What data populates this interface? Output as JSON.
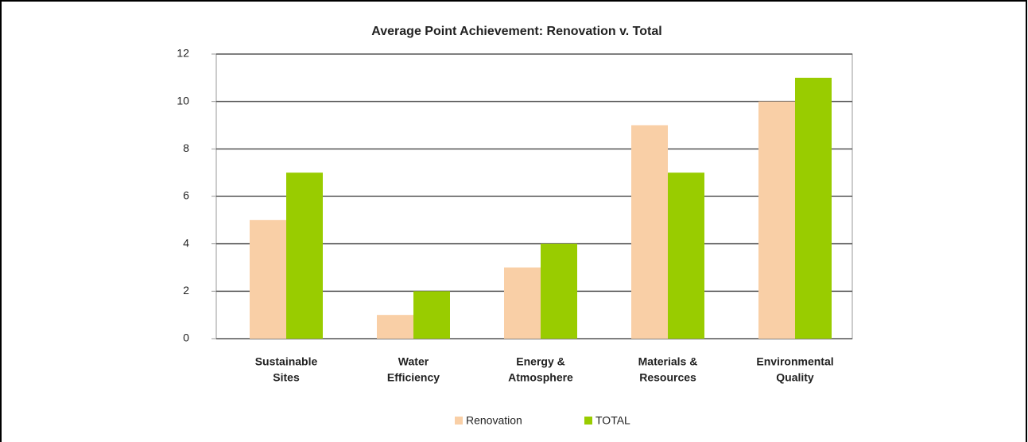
{
  "chart_data": {
    "type": "bar",
    "title": "Average Point Achievement: Renovation v. Total",
    "categories": [
      [
        "Sustainable",
        "Sites"
      ],
      [
        "Water",
        "Efficiency"
      ],
      [
        "Energy &",
        "Atmosphere"
      ],
      [
        "Materials &",
        "Resources"
      ],
      [
        "Environmental",
        "Quality"
      ]
    ],
    "series": [
      {
        "name": "Renovation",
        "color": "#f9cfa6",
        "values": [
          5,
          1,
          3,
          9,
          10
        ]
      },
      {
        "name": "TOTAL",
        "color": "#99cc00",
        "values": [
          7,
          2,
          4,
          7,
          11
        ]
      }
    ],
    "ylim": [
      0,
      12
    ],
    "yticks": [
      0,
      2,
      4,
      6,
      8,
      10,
      12
    ],
    "grid": true,
    "legend": "bottom"
  }
}
